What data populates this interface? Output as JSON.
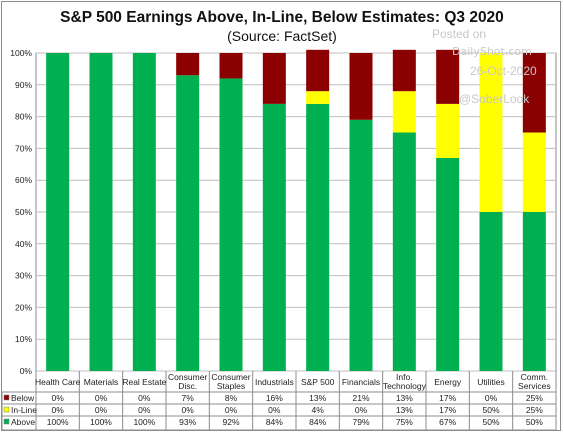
{
  "chart_data": {
    "type": "bar",
    "stacked": true,
    "title": "S&P 500 Earnings Above, In-Line, Below Estimates: Q3 2020",
    "subtitle": "(Source: FactSet)",
    "ylim": [
      0,
      100
    ],
    "y_ticks": [
      "0%",
      "10%",
      "20%",
      "30%",
      "40%",
      "50%",
      "60%",
      "70%",
      "80%",
      "90%",
      "100%"
    ],
    "grid": true,
    "legend_placement": "data-table-left",
    "categories": [
      [
        "Health Care"
      ],
      [
        "Materials"
      ],
      [
        "Real Estate"
      ],
      [
        "Consumer",
        "Disc."
      ],
      [
        "Consumer",
        "Staples"
      ],
      [
        "Industrials"
      ],
      [
        "S&P 500"
      ],
      [
        "Financials"
      ],
      [
        "Info.",
        "Technology"
      ],
      [
        "Energy"
      ],
      [
        "Utilities"
      ],
      [
        "Comm.",
        "Services"
      ]
    ],
    "series": [
      {
        "name": "Above",
        "color": "#00b050",
        "values": [
          100,
          100,
          100,
          93,
          92,
          84,
          84,
          79,
          75,
          67,
          50,
          50
        ],
        "labels": [
          "100%",
          "100%",
          "100%",
          "93%",
          "92%",
          "84%",
          "84%",
          "79%",
          "75%",
          "67%",
          "50%",
          "50%"
        ]
      },
      {
        "name": "In-Line",
        "color": "#ffff00",
        "values": [
          0,
          0,
          0,
          0,
          0,
          0,
          4,
          0,
          13,
          17,
          50,
          25
        ],
        "labels": [
          "0%",
          "0%",
          "0%",
          "0%",
          "0%",
          "0%",
          "4%",
          "0%",
          "13%",
          "17%",
          "50%",
          "25%"
        ]
      },
      {
        "name": "Below",
        "color": "#8b0000",
        "values": [
          0,
          0,
          0,
          7,
          8,
          16,
          13,
          21,
          13,
          17,
          0,
          25
        ],
        "labels": [
          "0%",
          "0%",
          "0%",
          "7%",
          "8%",
          "16%",
          "13%",
          "21%",
          "13%",
          "17%",
          "0%",
          "25%"
        ]
      }
    ],
    "table_row_order": [
      "Below",
      "In-Line",
      "Above"
    ]
  },
  "watermark": {
    "posted": "Posted on",
    "site": "DailyShot.com",
    "date": "26-Oct-2020",
    "handle": "@SoberLook"
  }
}
